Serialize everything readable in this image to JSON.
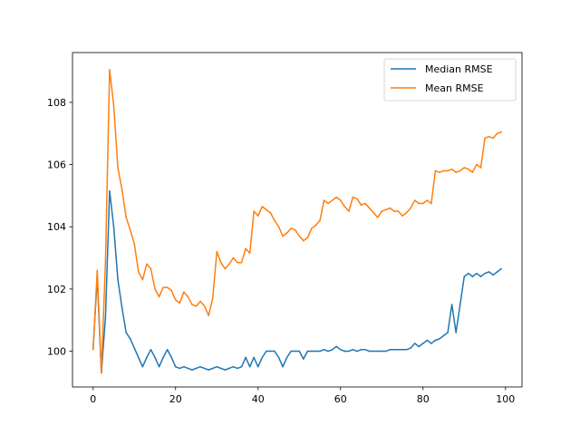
{
  "chart_data": {
    "type": "line",
    "title": "",
    "xlabel": "",
    "ylabel": "",
    "xlim": [
      -5,
      104
    ],
    "ylim": [
      98.85,
      109.6
    ],
    "xticks": [
      0,
      20,
      40,
      60,
      80,
      100
    ],
    "yticks": [
      100,
      102,
      104,
      106,
      108
    ],
    "grid": false,
    "legend_position": "top-right",
    "x": [
      0,
      1,
      2,
      3,
      4,
      5,
      6,
      7,
      8,
      9,
      10,
      11,
      12,
      13,
      14,
      15,
      16,
      17,
      18,
      19,
      20,
      21,
      22,
      23,
      24,
      25,
      26,
      27,
      28,
      29,
      30,
      31,
      32,
      33,
      34,
      35,
      36,
      37,
      38,
      39,
      40,
      41,
      42,
      43,
      44,
      45,
      46,
      47,
      48,
      49,
      50,
      51,
      52,
      53,
      54,
      55,
      56,
      57,
      58,
      59,
      60,
      61,
      62,
      63,
      64,
      65,
      66,
      67,
      68,
      69,
      70,
      71,
      72,
      73,
      74,
      75,
      76,
      77,
      78,
      79,
      80,
      81,
      82,
      83,
      84,
      85,
      86,
      87,
      88,
      89,
      90,
      91,
      92,
      93,
      94,
      95,
      96,
      97,
      98,
      99
    ],
    "series": [
      {
        "name": "Median RMSE",
        "color": "#1f77b4",
        "values": [
          100.05,
          102.4,
          99.3,
          101.1,
          105.15,
          104.0,
          102.3,
          101.4,
          100.6,
          100.4,
          100.1,
          99.8,
          99.5,
          99.8,
          100.05,
          99.8,
          99.5,
          99.8,
          100.05,
          99.8,
          99.5,
          99.45,
          99.5,
          99.45,
          99.4,
          99.45,
          99.5,
          99.45,
          99.4,
          99.45,
          99.5,
          99.45,
          99.4,
          99.45,
          99.5,
          99.45,
          99.5,
          99.8,
          99.5,
          99.8,
          99.5,
          99.8,
          100.0,
          100.0,
          100.0,
          99.8,
          99.5,
          99.8,
          100.0,
          100.0,
          100.0,
          99.75,
          100.0,
          100.0,
          100.0,
          100.0,
          100.05,
          100.0,
          100.05,
          100.15,
          100.05,
          100.0,
          100.0,
          100.05,
          100.0,
          100.05,
          100.05,
          100.0,
          100.0,
          100.0,
          100.0,
          100.0,
          100.05,
          100.05,
          100.05,
          100.05,
          100.05,
          100.1,
          100.25,
          100.15,
          100.25,
          100.35,
          100.25,
          100.35,
          100.4,
          100.5,
          100.6,
          101.5,
          100.6,
          101.5,
          102.4,
          102.5,
          102.4,
          102.5,
          102.4,
          102.5,
          102.55,
          102.45,
          102.55,
          102.65
        ]
      },
      {
        "name": "Mean RMSE",
        "color": "#ff7f0e",
        "values": [
          100.05,
          102.6,
          99.3,
          102.9,
          109.05,
          107.9,
          105.9,
          105.2,
          104.3,
          103.9,
          103.45,
          102.55,
          102.3,
          102.8,
          102.65,
          102.0,
          101.75,
          102.05,
          102.05,
          101.95,
          101.65,
          101.55,
          101.9,
          101.75,
          101.5,
          101.45,
          101.6,
          101.45,
          101.15,
          101.7,
          103.2,
          102.85,
          102.65,
          102.8,
          103.0,
          102.85,
          102.85,
          103.3,
          103.15,
          104.5,
          104.35,
          104.65,
          104.55,
          104.45,
          104.2,
          104.0,
          103.7,
          103.8,
          103.95,
          103.9,
          103.7,
          103.55,
          103.65,
          103.95,
          104.05,
          104.2,
          104.85,
          104.75,
          104.85,
          104.95,
          104.85,
          104.65,
          104.5,
          104.95,
          104.9,
          104.7,
          104.75,
          104.6,
          104.45,
          104.3,
          104.5,
          104.55,
          104.6,
          104.5,
          104.5,
          104.35,
          104.45,
          104.6,
          104.85,
          104.75,
          104.75,
          104.85,
          104.75,
          105.8,
          105.75,
          105.8,
          105.8,
          105.85,
          105.75,
          105.8,
          105.9,
          105.85,
          105.75,
          106.0,
          105.9,
          106.85,
          106.9,
          106.85,
          107.0,
          107.05
        ]
      }
    ]
  }
}
